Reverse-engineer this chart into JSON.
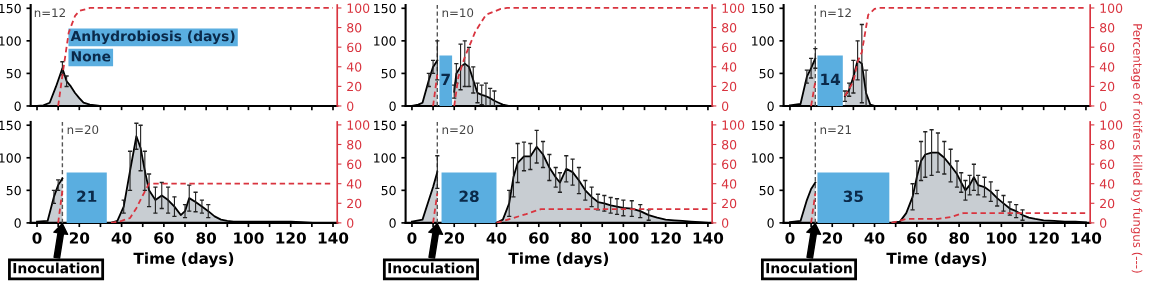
{
  "chart_data": [
    {
      "type": "area",
      "xlim": [
        -3,
        142
      ],
      "ylim": [
        0,
        155
      ],
      "y2lim": [
        0,
        103
      ],
      "xticks": [
        0,
        {
          "value": 10,
          "label": null
        },
        20,
        {
          "value": 30,
          "label": null
        },
        40,
        {
          "value": 50,
          "label": null
        },
        60,
        {
          "value": 70,
          "label": null
        },
        80,
        {
          "value": 90,
          "label": null
        },
        100,
        {
          "value": 110,
          "label": null
        },
        120,
        {
          "value": 130,
          "label": null
        },
        140
      ],
      "yticks": [
        0,
        50,
        100,
        150
      ],
      "y2ticks": [
        0,
        20,
        40,
        60,
        80,
        100
      ],
      "tick_labels": "y",
      "annotations": [
        "n=12",
        "Anhydrobiosis (days)",
        "None"
      ],
      "series": [
        {
          "color": "#c8cdd2",
          "x": [
            0,
            3,
            6,
            9,
            12,
            14,
            16,
            18,
            20,
            22,
            25,
            28,
            30
          ],
          "values": [
            0,
            1,
            5,
            30,
            58,
            38,
            30,
            20,
            12,
            5,
            2,
            1,
            0
          ],
          "errors": [
            null,
            null,
            null,
            null,
            10,
            8,
            null,
            null,
            null,
            null,
            null,
            null,
            null
          ]
        },
        {
          "type": "line",
          "axis": "y2",
          "color": "#d9343f",
          "line_style": "dashed",
          "x": [
            10,
            12,
            15,
            18,
            20,
            25,
            140
          ],
          "values": [
            0,
            31,
            75,
            92,
            97,
            100,
            100
          ]
        }
      ]
    },
    {
      "type": "area",
      "xlim": [
        -3,
        142
      ],
      "ylim": [
        0,
        155
      ],
      "y2lim": [
        0,
        103
      ],
      "xticks": [
        0,
        {
          "value": 10,
          "label": null
        },
        20,
        {
          "value": 30,
          "label": null
        },
        40,
        {
          "value": 50,
          "label": null
        },
        60,
        {
          "value": 70,
          "label": null
        },
        80,
        {
          "value": 90,
          "label": null
        },
        100,
        {
          "value": 110,
          "label": null
        },
        120,
        {
          "value": 130,
          "label": null
        },
        140
      ],
      "yticks": [
        0,
        50,
        100,
        150
      ],
      "y2ticks": [
        0,
        20,
        40,
        60,
        80,
        100
      ],
      "tick_labels": "y",
      "annotations": [
        "n=10"
      ],
      "bands": [
        {
          "axis": "x",
          "from": 13,
          "to": 19,
          "label": "7",
          "color": "#5aaee0"
        }
      ],
      "ref_lines": [
        {
          "axis": "x",
          "value": 12,
          "color": "#555555",
          "line_style": "dashed"
        }
      ],
      "series": [
        {
          "color": "#c8cdd2",
          "x": [
            0,
            3,
            5,
            8,
            10,
            12,
            16,
            20,
            21,
            23,
            25,
            27,
            29,
            31,
            33,
            35,
            37,
            39,
            41,
            43,
            46
          ],
          "values": [
            0,
            2,
            5,
            40,
            60,
            70,
            null,
            22,
            50,
            60,
            65,
            60,
            40,
            20,
            17,
            15,
            12,
            8,
            5,
            2,
            0
          ],
          "errors": [
            null,
            null,
            null,
            10,
            10,
            30,
            null,
            10,
            15,
            35,
            35,
            30,
            20,
            15,
            15,
            [
              0,
              35
            ],
            [
              0,
              27
            ],
            [
              0,
              23
            ],
            null,
            null,
            null
          ]
        },
        {
          "type": "line",
          "axis": "y2",
          "color": "#d9343f",
          "line_style": "dashed",
          "x": [
            10,
            12,
            16,
            20,
            22,
            25,
            30,
            35,
            42,
            45,
            140
          ],
          "values": [
            0,
            32,
            null,
            0,
            30,
            50,
            76,
            93,
            99,
            100,
            100
          ]
        }
      ]
    },
    {
      "type": "area",
      "xlim": [
        -3,
        142
      ],
      "ylim": [
        0,
        155
      ],
      "y2lim": [
        0,
        103
      ],
      "xticks": [
        0,
        {
          "value": 10,
          "label": null
        },
        20,
        {
          "value": 30,
          "label": null
        },
        40,
        {
          "value": 50,
          "label": null
        },
        60,
        {
          "value": 70,
          "label": null
        },
        80,
        {
          "value": 90,
          "label": null
        },
        100,
        {
          "value": 110,
          "label": null
        },
        120,
        {
          "value": 130,
          "label": null
        },
        140
      ],
      "yticks": [
        0,
        50,
        100,
        150
      ],
      "y2ticks": [
        0,
        20,
        40,
        60,
        80,
        100
      ],
      "tick_labels": "y",
      "y2label": "Percentage of rotifers killed by fungus (---)",
      "annotations": [
        "n=12"
      ],
      "bands": [
        {
          "axis": "x",
          "from": 13,
          "to": 25,
          "label": "14",
          "color": "#5aaee0"
        }
      ],
      "ref_lines": [
        {
          "axis": "x",
          "value": 12,
          "color": "#555555",
          "line_style": "dashed"
        }
      ],
      "series": [
        {
          "color": "#c8cdd2",
          "x": [
            0,
            5,
            8,
            10,
            12,
            19,
            26,
            28,
            30,
            32,
            34,
            36,
            38,
            40
          ],
          "values": [
            1,
            3,
            45,
            58,
            73,
            null,
            15,
            25,
            45,
            70,
            65,
            20,
            2,
            0
          ],
          "errors": [
            null,
            null,
            10,
            15,
            15,
            null,
            8,
            10,
            25,
            30,
            60,
            35,
            null,
            null
          ]
        },
        {
          "type": "line",
          "axis": "y2",
          "color": "#d9343f",
          "line_style": "dashed",
          "x": [
            10,
            12,
            19,
            26,
            30,
            32,
            34,
            37,
            40,
            42,
            140
          ],
          "values": [
            0,
            25,
            null,
            10,
            25,
            45,
            55,
            93,
            99,
            100,
            100
          ]
        }
      ]
    },
    {
      "type": "area",
      "xlim": [
        -3,
        142
      ],
      "ylim": [
        0,
        155
      ],
      "y2lim": [
        0,
        103
      ],
      "xticks": [
        0,
        {
          "value": 10,
          "label": null
        },
        20,
        {
          "value": 30,
          "label": null
        },
        40,
        {
          "value": 50,
          "label": null
        },
        60,
        {
          "value": 70,
          "label": null
        },
        80,
        {
          "value": 90,
          "label": null
        },
        100,
        {
          "value": 110,
          "label": null
        },
        120,
        {
          "value": 130,
          "label": null
        },
        140
      ],
      "yticks": [
        0,
        50,
        100,
        150
      ],
      "y2ticks": [
        0,
        20,
        40,
        60,
        80,
        100
      ],
      "xlabel": "Time (days)",
      "annotations": [
        "n=20",
        "Inoculation"
      ],
      "bands": [
        {
          "axis": "x",
          "from": 14,
          "to": 33,
          "label": "21",
          "color": "#5aaee0"
        }
      ],
      "ref_lines": [
        {
          "axis": "x",
          "value": 12,
          "color": "#555555",
          "line_style": "dashed"
        }
      ],
      "series": [
        {
          "color": "#c8cdd2",
          "x": [
            0,
            5,
            8,
            10,
            12,
            24,
            35,
            38,
            41,
            44,
            47,
            49,
            51,
            53,
            56,
            59,
            62,
            65,
            68,
            70,
            72,
            75,
            78,
            81,
            84,
            87,
            90,
            93,
            100,
            110,
            120,
            125,
            130
          ],
          "values": [
            2,
            3,
            40,
            58,
            68,
            null,
            0,
            3,
            25,
            80,
            133,
            115,
            80,
            50,
            35,
            42,
            35,
            25,
            12,
            18,
            38,
            32,
            25,
            18,
            10,
            5,
            3,
            2,
            2,
            2,
            2,
            1,
            0
          ],
          "errors": [
            null,
            null,
            10,
            8,
            null,
            null,
            null,
            null,
            10,
            30,
            20,
            35,
            30,
            25,
            20,
            20,
            20,
            15,
            null,
            10,
            20,
            15,
            10,
            10,
            null,
            null,
            null,
            null,
            null,
            null,
            null,
            null,
            null
          ]
        },
        {
          "type": "line",
          "axis": "y2",
          "color": "#d9343f",
          "line_style": "dashed",
          "x": [
            10,
            12,
            16,
            35,
            40,
            44,
            47,
            50,
            53,
            140
          ],
          "values": [
            0,
            33,
            null,
            0,
            2,
            5,
            15,
            28,
            40,
            40
          ]
        }
      ]
    },
    {
      "type": "area",
      "xlim": [
        -3,
        142
      ],
      "ylim": [
        0,
        155
      ],
      "y2lim": [
        0,
        103
      ],
      "xticks": [
        0,
        {
          "value": 10,
          "label": null
        },
        20,
        {
          "value": 30,
          "label": null
        },
        40,
        {
          "value": 50,
          "label": null
        },
        60,
        {
          "value": 70,
          "label": null
        },
        80,
        {
          "value": 90,
          "label": null
        },
        100,
        {
          "value": 110,
          "label": null
        },
        120,
        {
          "value": 130,
          "label": null
        },
        140
      ],
      "yticks": [
        0,
        50,
        100,
        150
      ],
      "y2ticks": [
        0,
        20,
        40,
        60,
        80,
        100
      ],
      "xlabel": "Time (days)",
      "annotations": [
        "n=20",
        "Inoculation"
      ],
      "bands": [
        {
          "axis": "x",
          "from": 14,
          "to": 40,
          "label": "28",
          "color": "#5aaee0"
        }
      ],
      "ref_lines": [
        {
          "axis": "x",
          "value": 12,
          "color": "#555555",
          "line_style": "dashed"
        }
      ],
      "series": [
        {
          "color": "#c8cdd2",
          "x": [
            0,
            5,
            8,
            10,
            12,
            26,
            40,
            43,
            46,
            48,
            50,
            53,
            56,
            59,
            62,
            65,
            68,
            70,
            73,
            76,
            79,
            82,
            85,
            88,
            91,
            94,
            97,
            100,
            104,
            108,
            112,
            116,
            120,
            124,
            128,
            132,
            136,
            140
          ],
          "values": [
            2,
            5,
            35,
            55,
            78,
            null,
            0,
            5,
            30,
            70,
            92,
            102,
            102,
            117,
            105,
            85,
            70,
            62,
            83,
            78,
            65,
            50,
            40,
            32,
            30,
            27,
            25,
            23,
            22,
            18,
            12,
            8,
            5,
            4,
            3,
            2,
            1,
            0
          ],
          "errors": [
            null,
            null,
            null,
            null,
            25,
            null,
            null,
            null,
            20,
            30,
            30,
            22,
            20,
            25,
            20,
            20,
            15,
            15,
            20,
            20,
            20,
            15,
            15,
            12,
            12,
            12,
            12,
            12,
            12,
            10,
            8,
            null,
            null,
            null,
            null,
            null,
            null,
            null
          ]
        },
        {
          "type": "line",
          "axis": "y2",
          "color": "#d9343f",
          "line_style": "dashed",
          "x": [
            10,
            12,
            26,
            40,
            48,
            54,
            58,
            61,
            140
          ],
          "values": [
            0,
            30,
            null,
            0,
            5,
            9,
            12,
            14,
            14
          ]
        }
      ]
    },
    {
      "type": "area",
      "xlim": [
        -3,
        142
      ],
      "ylim": [
        0,
        155
      ],
      "y2lim": [
        0,
        103
      ],
      "xticks": [
        0,
        {
          "value": 10,
          "label": null
        },
        20,
        {
          "value": 30,
          "label": null
        },
        40,
        {
          "value": 50,
          "label": null
        },
        60,
        {
          "value": 70,
          "label": null
        },
        80,
        {
          "value": 90,
          "label": null
        },
        100,
        {
          "value": 110,
          "label": null
        },
        120,
        {
          "value": 130,
          "label": null
        },
        140
      ],
      "yticks": [
        0,
        50,
        100,
        150
      ],
      "y2ticks": [
        0,
        20,
        40,
        60,
        80,
        100
      ],
      "xlabel": "Time (days)",
      "annotations": [
        "n=21",
        "Inoculation"
      ],
      "bands": [
        {
          "axis": "x",
          "from": 13,
          "to": 47,
          "label": "35",
          "color": "#5aaee0"
        }
      ],
      "ref_lines": [
        {
          "axis": "x",
          "value": 12,
          "color": "#555555",
          "line_style": "dashed"
        }
      ],
      "series": [
        {
          "color": "#c8cdd2",
          "x": [
            0,
            5,
            8,
            10,
            12,
            30,
            48,
            52,
            55,
            58,
            60,
            62,
            64,
            67,
            70,
            73,
            76,
            79,
            81,
            83,
            85,
            87,
            89,
            92,
            95,
            98,
            101,
            104,
            107,
            110,
            113,
            116,
            120,
            125,
            130,
            135,
            140
          ],
          "values": [
            1,
            3,
            35,
            52,
            62,
            null,
            0,
            2,
            15,
            40,
            70,
            95,
            105,
            108,
            108,
            100,
            88,
            75,
            62,
            50,
            58,
            70,
            58,
            55,
            48,
            38,
            30,
            22,
            18,
            12,
            8,
            6,
            4,
            3,
            2,
            2,
            1
          ],
          "errors": [
            null,
            null,
            null,
            null,
            null,
            null,
            null,
            null,
            null,
            20,
            25,
            30,
            35,
            35,
            30,
            25,
            25,
            20,
            15,
            15,
            15,
            20,
            15,
            15,
            15,
            12,
            12,
            10,
            10,
            8,
            null,
            null,
            null,
            null,
            null,
            null,
            null
          ]
        },
        {
          "type": "line",
          "axis": "y2",
          "color": "#d9343f",
          "line_style": "dashed",
          "x": [
            10,
            12,
            30,
            48,
            55,
            70,
            76,
            82,
            110,
            140
          ],
          "values": [
            0,
            30,
            null,
            0,
            4,
            4,
            6,
            10,
            10,
            10
          ]
        }
      ]
    }
  ]
}
